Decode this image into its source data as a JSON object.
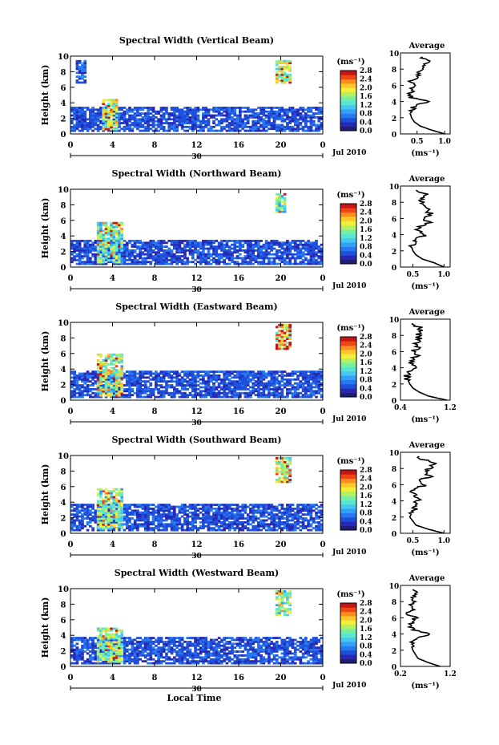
{
  "figure": {
    "x_axis_title": "Local Time",
    "date_label": "Jul 2010",
    "day_label": "30",
    "colorbar_unit": "(ms⁻¹)",
    "colorbar_ticks": [
      "0.0",
      "0.4",
      "0.8",
      "1.2",
      "1.6",
      "2.0",
      "2.4",
      "2.8"
    ],
    "height_label": "Height (km)",
    "average_title": "Average",
    "average_xlabel": "(ms⁻¹)"
  },
  "colors": {
    "colormap": [
      "#1e1e78",
      "#2828b4",
      "#1e50dc",
      "#2878f0",
      "#32a0f5",
      "#46c8f0",
      "#5ae6d2",
      "#78f0a0",
      "#b4f064",
      "#f0f03c",
      "#ffc828",
      "#ff8c1e",
      "#f04614",
      "#c81414"
    ]
  },
  "chart_data": [
    {
      "type": "heatmap",
      "title": "Spectral Width (Vertical Beam)",
      "xlabel": "Local Time",
      "ylabel": "Height (km)",
      "xlim": [
        0,
        24
      ],
      "ylim": [
        0,
        10
      ],
      "xticks": [
        "0",
        "4",
        "8",
        "12",
        "16",
        "20",
        "0"
      ],
      "yticks": [
        "0",
        "2",
        "4",
        "6",
        "8",
        "10"
      ],
      "colorbar": {
        "label": "(ms⁻¹)",
        "range": [
          0.0,
          2.8
        ],
        "ticks": [
          "0.0",
          "0.4",
          "0.8",
          "1.2",
          "1.6",
          "2.0",
          "2.4",
          "2.8"
        ]
      },
      "features": [
        {
          "x": [
            0,
            24
          ],
          "y": [
            0.3,
            3.5
          ],
          "value": 0.5
        },
        {
          "x": [
            3.0,
            4.5
          ],
          "y": [
            0.5,
            4.5
          ],
          "value": 1.6
        },
        {
          "x": [
            19.5,
            21.0
          ],
          "y": [
            6.5,
            9.5
          ],
          "value": 1.6
        },
        {
          "x": [
            0.5,
            1.5
          ],
          "y": [
            6.5,
            9.5
          ],
          "value": 0.5
        }
      ],
      "profile": {
        "xlim": [
          0.2,
          1.1
        ],
        "xticks": [
          "0.5",
          "1.0"
        ],
        "height": [
          0,
          0.5,
          1,
          1.5,
          2,
          2.5,
          3,
          3.5,
          4,
          4.5,
          5,
          5.5,
          6,
          6.5,
          7,
          7.5,
          8,
          8.5,
          9,
          9.5
        ],
        "values": [
          1.0,
          0.75,
          0.55,
          0.45,
          0.4,
          0.38,
          0.4,
          0.45,
          0.7,
          0.4,
          0.38,
          0.4,
          0.45,
          0.35,
          0.55,
          0.5,
          0.6,
          0.65,
          0.7,
          0.6
        ]
      }
    },
    {
      "type": "heatmap",
      "title": "Spectral Width (Northward Beam)",
      "xlabel": "Local Time",
      "ylabel": "Height (km)",
      "xlim": [
        0,
        24
      ],
      "ylim": [
        0,
        10
      ],
      "xticks": [
        "0",
        "4",
        "8",
        "12",
        "16",
        "20",
        "0"
      ],
      "yticks": [
        "0",
        "2",
        "4",
        "6",
        "8",
        "10"
      ],
      "colorbar": {
        "label": "(ms⁻¹)",
        "range": [
          0.0,
          2.8
        ],
        "ticks": [
          "0.0",
          "0.4",
          "0.8",
          "1.2",
          "1.6",
          "2.0",
          "2.4",
          "2.8"
        ]
      },
      "features": [
        {
          "x": [
            0,
            24
          ],
          "y": [
            0.3,
            3.5
          ],
          "value": 0.5
        },
        {
          "x": [
            2.5,
            5.0
          ],
          "y": [
            0.5,
            5.8
          ],
          "value": 1.4
        },
        {
          "x": [
            19.5,
            20.5
          ],
          "y": [
            7.0,
            9.5
          ],
          "value": 1.4
        }
      ],
      "profile": {
        "xlim": [
          0.3,
          1.1
        ],
        "xticks": [
          "0.5",
          "1.0"
        ],
        "height": [
          0,
          0.5,
          1,
          1.5,
          2,
          2.5,
          3,
          3.5,
          4,
          4.5,
          5,
          5.5,
          6,
          6.5,
          7,
          7.5,
          8,
          8.5,
          9,
          9.5
        ],
        "values": [
          1.0,
          0.85,
          0.65,
          0.55,
          0.5,
          0.48,
          0.5,
          0.55,
          0.7,
          0.55,
          0.6,
          0.75,
          0.65,
          0.8,
          0.7,
          0.75,
          0.65,
          0.6,
          0.7,
          0.55
        ]
      }
    },
    {
      "type": "heatmap",
      "title": "Spectral Width (Eastward Beam)",
      "xlabel": "Local Time",
      "ylabel": "Height (km)",
      "xlim": [
        0,
        24
      ],
      "ylim": [
        0,
        10
      ],
      "xticks": [
        "0",
        "4",
        "8",
        "12",
        "16",
        "20",
        "0"
      ],
      "yticks": [
        "0",
        "2",
        "4",
        "6",
        "8",
        "10"
      ],
      "colorbar": {
        "label": "(ms⁻¹)",
        "range": [
          0.0,
          2.8
        ],
        "ticks": [
          "0.0",
          "0.4",
          "0.8",
          "1.2",
          "1.6",
          "2.0",
          "2.4",
          "2.8"
        ]
      },
      "features": [
        {
          "x": [
            0,
            24
          ],
          "y": [
            0.3,
            3.8
          ],
          "value": 0.5
        },
        {
          "x": [
            2.5,
            5.0
          ],
          "y": [
            0.5,
            6.0
          ],
          "value": 1.6
        },
        {
          "x": [
            19.5,
            21.0
          ],
          "y": [
            6.5,
            9.8
          ],
          "value": 2.0
        }
      ],
      "profile": {
        "xlim": [
          0.4,
          1.2
        ],
        "xticks": [
          "0.4",
          "1.2"
        ],
        "height": [
          0,
          0.5,
          1,
          1.5,
          2,
          2.5,
          3,
          3.5,
          4,
          4.5,
          5,
          5.5,
          6,
          6.5,
          7,
          7.5,
          8,
          8.5,
          9,
          9.5
        ],
        "values": [
          1.15,
          0.85,
          0.7,
          0.6,
          0.55,
          0.52,
          0.5,
          0.55,
          0.65,
          0.55,
          0.6,
          0.65,
          0.6,
          0.7,
          0.65,
          0.72,
          0.68,
          0.75,
          0.7,
          0.6
        ]
      }
    },
    {
      "type": "heatmap",
      "title": "Spectral Width (Southward Beam)",
      "xlabel": "Local Time",
      "ylabel": "Height (km)",
      "xlim": [
        0,
        24
      ],
      "ylim": [
        0,
        10
      ],
      "xticks": [
        "0",
        "4",
        "8",
        "12",
        "16",
        "20",
        "0"
      ],
      "yticks": [
        "0",
        "2",
        "4",
        "6",
        "8",
        "10"
      ],
      "colorbar": {
        "label": "(ms⁻¹)",
        "range": [
          0.0,
          2.8
        ],
        "ticks": [
          "0.0",
          "0.4",
          "0.8",
          "1.2",
          "1.6",
          "2.0",
          "2.4",
          "2.8"
        ]
      },
      "features": [
        {
          "x": [
            0,
            24
          ],
          "y": [
            0.3,
            3.8
          ],
          "value": 0.5
        },
        {
          "x": [
            2.5,
            5.0
          ],
          "y": [
            0.5,
            5.8
          ],
          "value": 1.5
        },
        {
          "x": [
            19.5,
            21.0
          ],
          "y": [
            6.5,
            9.8
          ],
          "value": 1.8
        }
      ],
      "profile": {
        "xlim": [
          0.3,
          1.1
        ],
        "xticks": [
          "0.5",
          "1.0"
        ],
        "height": [
          0,
          0.5,
          1,
          1.5,
          2,
          2.5,
          3,
          3.5,
          4,
          4.5,
          5,
          5.5,
          6,
          6.5,
          7,
          7.5,
          8,
          8.5,
          9,
          9.5
        ],
        "values": [
          1.0,
          0.75,
          0.55,
          0.5,
          0.45,
          0.48,
          0.55,
          0.5,
          0.6,
          0.52,
          0.5,
          0.55,
          0.7,
          0.6,
          0.8,
          0.7,
          0.75,
          0.85,
          0.7,
          0.6
        ]
      }
    },
    {
      "type": "heatmap",
      "title": "Spectral Width (Westward Beam)",
      "xlabel": "Local Time",
      "ylabel": "Height (km)",
      "xlim": [
        0,
        24
      ],
      "ylim": [
        0,
        10
      ],
      "xticks": [
        "0",
        "4",
        "8",
        "12",
        "16",
        "20",
        "0"
      ],
      "yticks": [
        "0",
        "2",
        "4",
        "6",
        "8",
        "10"
      ],
      "colorbar": {
        "label": "(ms⁻¹)",
        "range": [
          0.0,
          2.8
        ],
        "ticks": [
          "0.0",
          "0.4",
          "0.8",
          "1.2",
          "1.6",
          "2.0",
          "2.4",
          "2.8"
        ]
      },
      "features": [
        {
          "x": [
            0,
            24
          ],
          "y": [
            0.3,
            3.8
          ],
          "value": 0.5
        },
        {
          "x": [
            2.5,
            5.0
          ],
          "y": [
            0.5,
            5.0
          ],
          "value": 1.5
        },
        {
          "x": [
            19.5,
            21.0
          ],
          "y": [
            6.5,
            9.8
          ],
          "value": 1.4
        }
      ],
      "profile": {
        "xlim": [
          0.2,
          1.2
        ],
        "xticks": [
          "0.2",
          "1.2"
        ],
        "height": [
          0,
          0.5,
          1,
          1.5,
          2,
          2.5,
          3,
          3.5,
          4,
          4.5,
          5,
          5.5,
          6,
          6.5,
          7,
          7.5,
          8,
          8.5,
          9,
          9.5
        ],
        "values": [
          1.0,
          0.75,
          0.55,
          0.5,
          0.45,
          0.42,
          0.45,
          0.5,
          0.8,
          0.45,
          0.4,
          0.42,
          0.5,
          0.35,
          0.45,
          0.4,
          0.5,
          0.45,
          0.5,
          0.45
        ]
      }
    }
  ]
}
